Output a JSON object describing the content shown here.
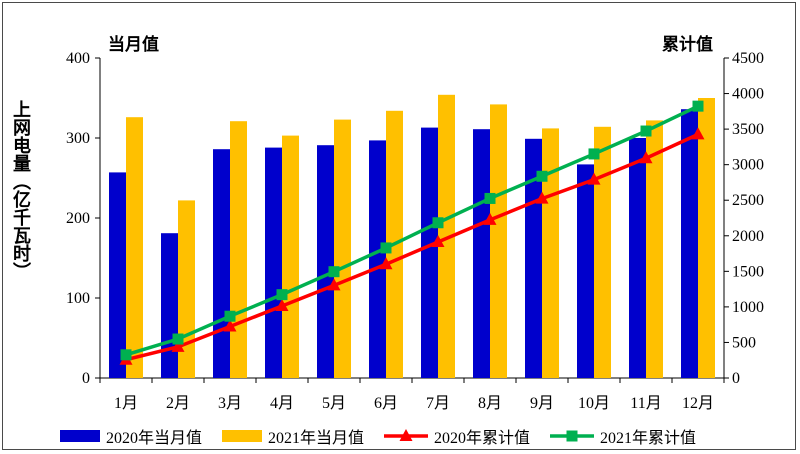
{
  "chart_data": {
    "type": "bar",
    "left_unit": "当月值",
    "right_unit": "累计值",
    "ylabel": "上网电量（亿千瓦时）",
    "categories": [
      "1月",
      "2月",
      "3月",
      "4月",
      "5月",
      "6月",
      "7月",
      "8月",
      "9月",
      "10月",
      "11月",
      "12月"
    ],
    "ylim": [
      0,
      400
    ],
    "yticks": [
      0,
      100,
      200,
      300,
      400
    ],
    "y2lim": [
      0,
      4500
    ],
    "y2ticks": [
      0,
      500,
      1000,
      1500,
      2000,
      2500,
      3000,
      3500,
      4000,
      4500
    ],
    "grid": false,
    "legend_position": "bottom",
    "series": [
      {
        "name": "2020年当月值",
        "kind": "bar",
        "axis": "left",
        "color": "#0000cc",
        "values": [
          257,
          181,
          286,
          288,
          291,
          297,
          313,
          311,
          299,
          267,
          300,
          336
        ]
      },
      {
        "name": "2021年当月值",
        "kind": "bar",
        "axis": "left",
        "color": "#ffc000",
        "values": [
          326,
          222,
          321,
          303,
          323,
          334,
          354,
          342,
          312,
          314,
          322,
          350
        ]
      },
      {
        "name": "2020年累计值",
        "kind": "line",
        "axis": "right",
        "color": "#ff0000",
        "marker": "triangle",
        "values": [
          257,
          438,
          724,
          1012,
          1303,
          1600,
          1913,
          2224,
          2523,
          2790,
          3090,
          3426
        ]
      },
      {
        "name": "2021年累计值",
        "kind": "line",
        "axis": "right",
        "color": "#00b050",
        "marker": "square",
        "values": [
          326,
          548,
          869,
          1172,
          1495,
          1829,
          2183,
          2525,
          2837,
          3151,
          3473,
          3823
        ]
      }
    ]
  }
}
